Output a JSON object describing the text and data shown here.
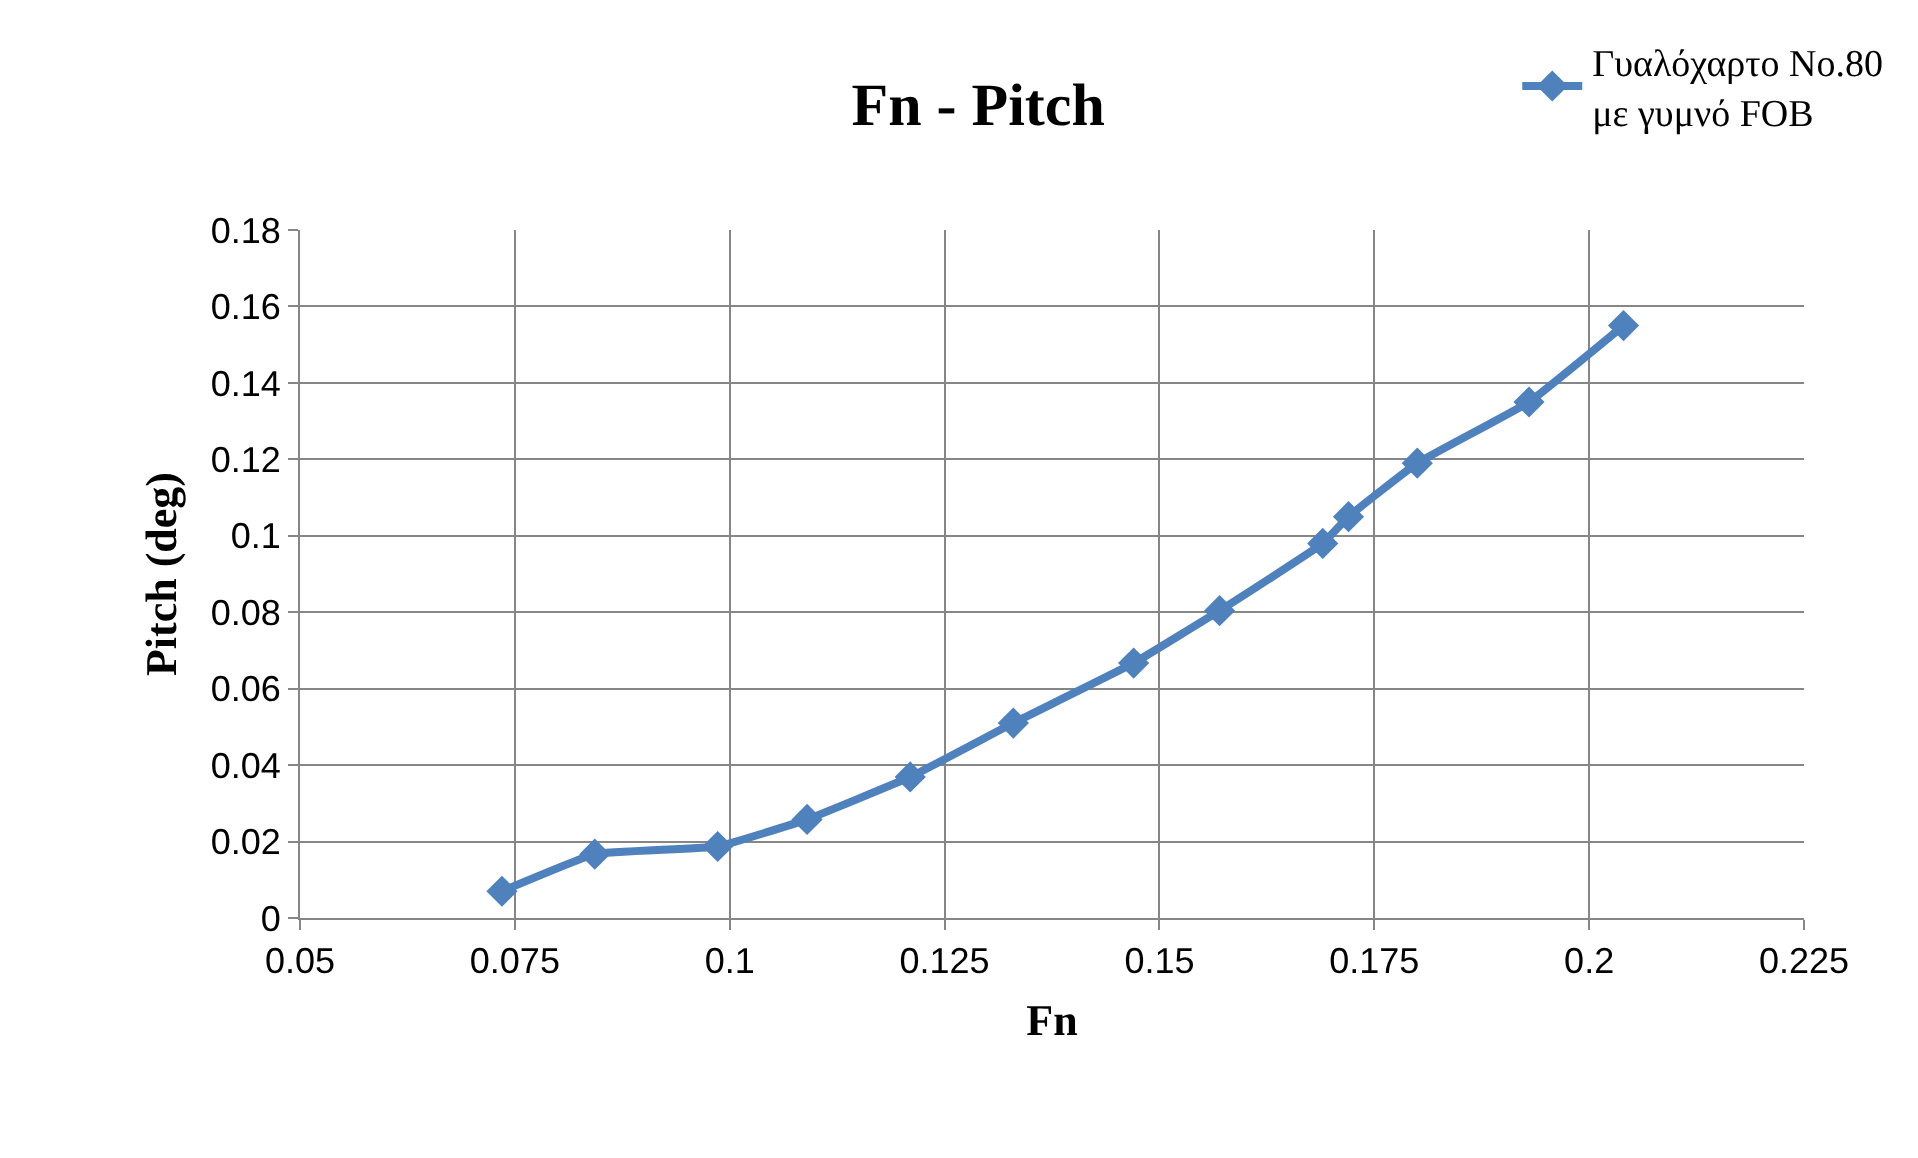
{
  "chart_data": {
    "type": "line",
    "title": "Fn - Pitch",
    "xlabel": "Fn",
    "ylabel": "Pitch (deg)",
    "series": [
      {
        "name": "Γυαλόχαρτο No.80\nμε γυμνό FOB",
        "color": "#4f81bd",
        "x": [
          0.0735,
          0.0843,
          0.0986,
          0.109,
          0.121,
          0.133,
          0.147,
          0.157,
          0.169,
          0.172,
          0.18,
          0.193,
          0.204
        ],
        "values": [
          0.007,
          0.0167,
          0.0187,
          0.0258,
          0.0369,
          0.051,
          0.0667,
          0.0804,
          0.098,
          0.105,
          0.119,
          0.135,
          0.155
        ]
      }
    ],
    "xlim": [
      0.05,
      0.225
    ],
    "xticks": [
      0.05,
      0.075,
      0.1,
      0.125,
      0.15,
      0.175,
      0.2,
      0.225
    ],
    "ylim": [
      0,
      0.18
    ],
    "yticks": [
      0,
      0.02,
      0.04,
      0.06,
      0.08,
      0.1,
      0.12,
      0.14,
      0.16,
      0.18
    ],
    "grid": true,
    "legend": "top right",
    "marker": "diamond",
    "line_style": "solid"
  }
}
